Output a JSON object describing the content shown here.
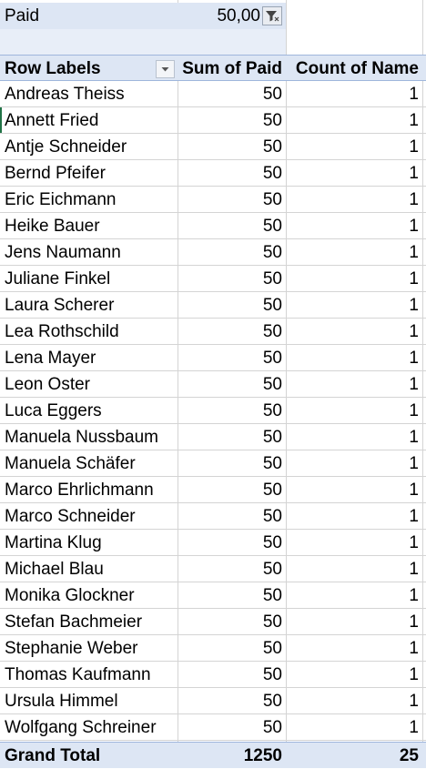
{
  "filter": {
    "label": "Paid",
    "value": "50,00",
    "icon": "filter-icon"
  },
  "pivot": {
    "headers": {
      "row_labels": "Row Labels",
      "sum_paid": "Sum of Paid",
      "count_name": "Count of Name"
    },
    "rows": [
      {
        "name": "Andreas Theiss",
        "sum": "50",
        "count": "1"
      },
      {
        "name": "Annett Fried",
        "sum": "50",
        "count": "1"
      },
      {
        "name": "Antje Schneider",
        "sum": "50",
        "count": "1"
      },
      {
        "name": "Bernd Pfeifer",
        "sum": "50",
        "count": "1"
      },
      {
        "name": "Eric Eichmann",
        "sum": "50",
        "count": "1"
      },
      {
        "name": "Heike Bauer",
        "sum": "50",
        "count": "1"
      },
      {
        "name": "Jens Naumann",
        "sum": "50",
        "count": "1"
      },
      {
        "name": "Juliane Finkel",
        "sum": "50",
        "count": "1"
      },
      {
        "name": "Laura Scherer",
        "sum": "50",
        "count": "1"
      },
      {
        "name": "Lea Rothschild",
        "sum": "50",
        "count": "1"
      },
      {
        "name": "Lena Mayer",
        "sum": "50",
        "count": "1"
      },
      {
        "name": "Leon Oster",
        "sum": "50",
        "count": "1"
      },
      {
        "name": "Luca Eggers",
        "sum": "50",
        "count": "1"
      },
      {
        "name": "Manuela Nussbaum",
        "sum": "50",
        "count": "1"
      },
      {
        "name": "Manuela Schäfer",
        "sum": "50",
        "count": "1"
      },
      {
        "name": "Marco Ehrlichmann",
        "sum": "50",
        "count": "1"
      },
      {
        "name": "Marco Schneider",
        "sum": "50",
        "count": "1"
      },
      {
        "name": "Martina Klug",
        "sum": "50",
        "count": "1"
      },
      {
        "name": "Michael Blau",
        "sum": "50",
        "count": "1"
      },
      {
        "name": "Monika Glockner",
        "sum": "50",
        "count": "1"
      },
      {
        "name": "Stefan Bachmeier",
        "sum": "50",
        "count": "1"
      },
      {
        "name": "Stephanie Weber",
        "sum": "50",
        "count": "1"
      },
      {
        "name": "Thomas Kaufmann",
        "sum": "50",
        "count": "1"
      },
      {
        "name": "Ursula Himmel",
        "sum": "50",
        "count": "1"
      },
      {
        "name": "Wolfgang Schreiner",
        "sum": "50",
        "count": "1"
      }
    ],
    "grand_total": {
      "label": "Grand Total",
      "sum": "1250",
      "count": "25"
    }
  },
  "colors": {
    "pivot_header_fill": "#dde6f4",
    "pivot_border": "#9fb6dc",
    "gridline": "#d4d4d4",
    "active_cell_marker": "#217346"
  }
}
